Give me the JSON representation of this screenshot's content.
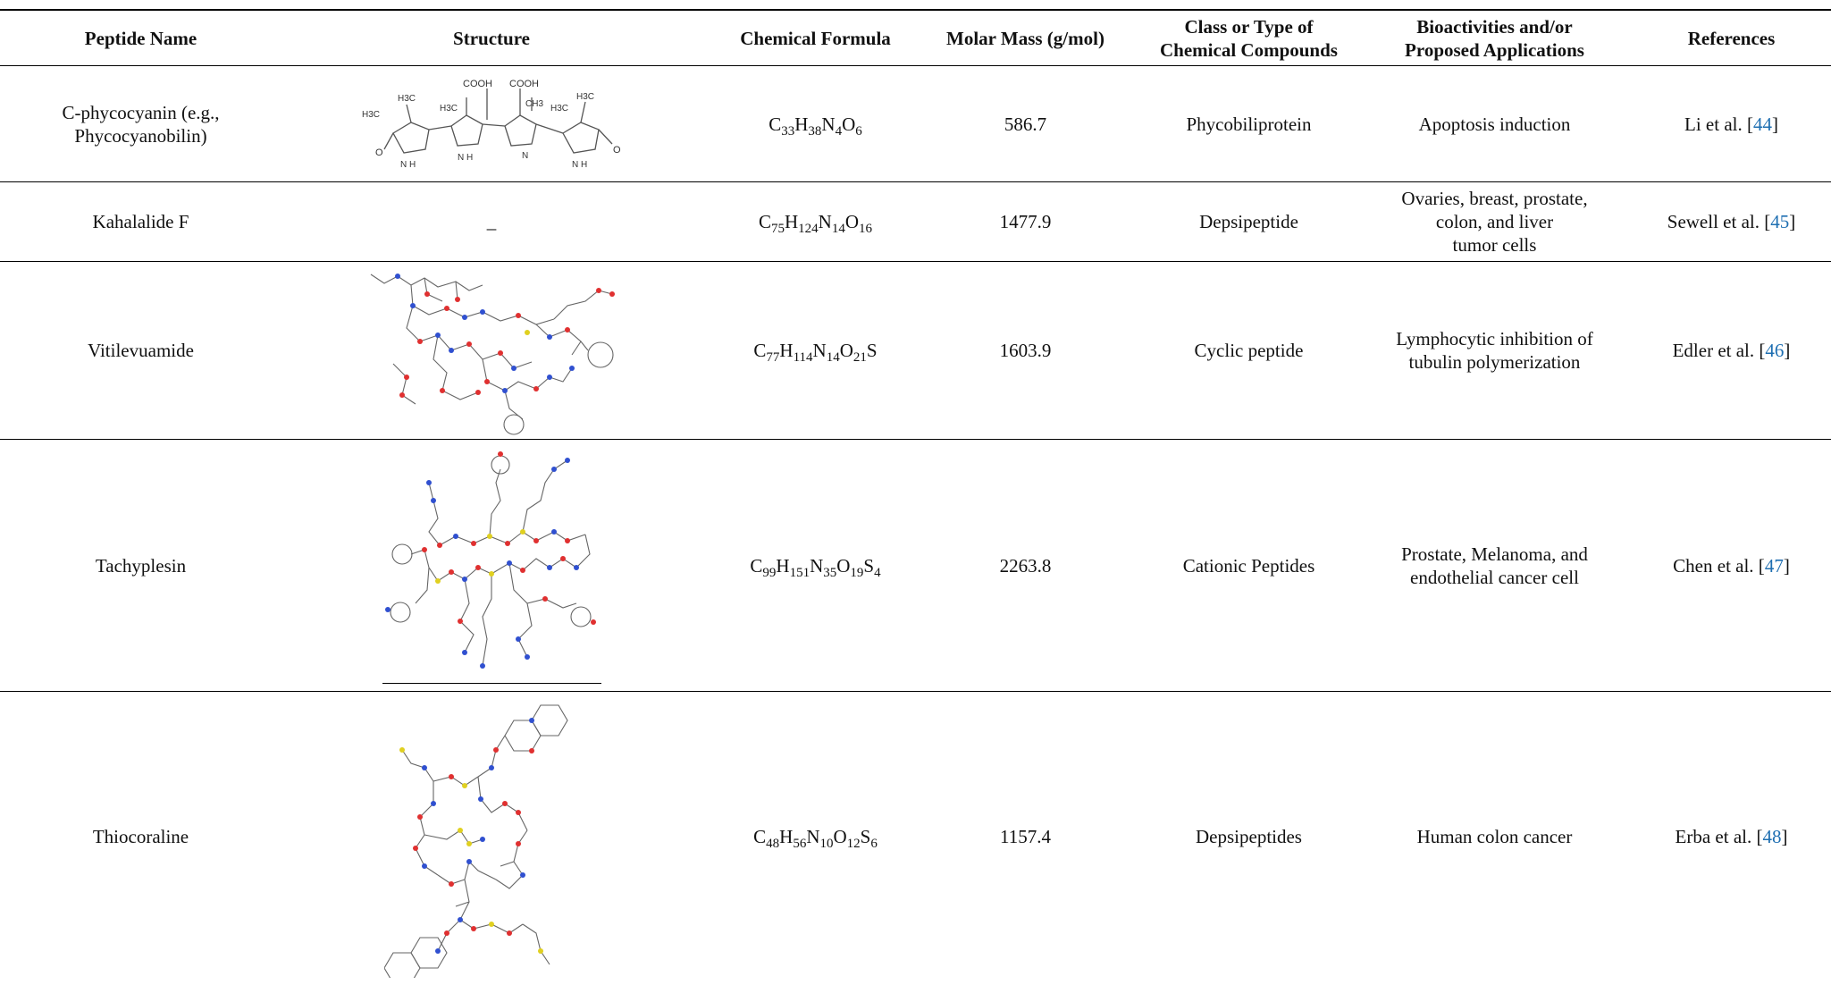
{
  "table": {
    "headers": {
      "name": "Peptide Name",
      "structure": "Structure",
      "formula": "Chemical Formula",
      "mass": "Molar Mass (g/mol)",
      "class_line1": "Class or Type of",
      "class_line2": "Chemical Compounds",
      "bio_line1": "Bioactivities and/or",
      "bio_line2": "Proposed Applications",
      "refs": "References"
    },
    "rows": [
      {
        "name_line1": "C-phycocyanin (e.g.,",
        "name_line2": "Phycocyanobilin)",
        "formula": [
          "C",
          "33",
          "H",
          "38",
          "N",
          "4",
          "O",
          "6"
        ],
        "mass": "586.7",
        "class": "Phycobiliprotein",
        "bio": "Apoptosis induction",
        "ref_text": "Li et al. [",
        "ref_num": "44",
        "ref_end": "]",
        "structure_labels": {
          "cooh1": "COOH",
          "cooh2": "COOH",
          "h3c1": "H3C",
          "h3c2": "H3C",
          "h3c3": "H3C",
          "ch3": "CH3",
          "h3c4": "H3C",
          "h3c5": "H3C",
          "o1": "O",
          "o2": "O",
          "nh1": "N H",
          "nh2": "N H",
          "n": "N",
          "nh3": "N H"
        }
      },
      {
        "name_line1": "Kahalalide F",
        "structure_text": "_",
        "formula": [
          "C",
          "75",
          "H",
          "124",
          "N",
          "14",
          "O",
          "16"
        ],
        "mass": "1477.9",
        "class": "Depsipeptide",
        "bio_line1": "Ovaries, breast, prostate,",
        "bio_line2": "colon, and liver",
        "bio_line3": "tumor cells",
        "ref_text": "Sewell et al. [",
        "ref_num": "45",
        "ref_end": "]"
      },
      {
        "name_line1": "Vitilevuamide",
        "formula": [
          "C",
          "77",
          "H",
          "114",
          "N",
          "14",
          "O",
          "21",
          "S",
          ""
        ],
        "mass": "1603.9",
        "class": "Cyclic peptide",
        "bio_line1": "Lymphocytic inhibition of",
        "bio_line2": "tubulin polymerization",
        "ref_text": "Edler et al. [",
        "ref_num": "46",
        "ref_end": "]"
      },
      {
        "name_line1": "Tachyplesin",
        "formula": [
          "C",
          "99",
          "H",
          "151",
          "N",
          "35",
          "O",
          "19",
          "S",
          "4"
        ],
        "mass": "2263.8",
        "class": "Cationic Peptides",
        "bio_line1": "Prostate, Melanoma, and",
        "bio_line2": "endothelial cancer cell",
        "ref_text": "Chen et al. [",
        "ref_num": "47",
        "ref_end": "]"
      },
      {
        "name_line1": "Thiocoraline",
        "formula": [
          "C",
          "48",
          "H",
          "56",
          "N",
          "10",
          "O",
          "12",
          "S",
          "6"
        ],
        "mass": "1157.4",
        "class": "Depsipeptides",
        "bio": "Human colon cancer",
        "ref_text": "Erba et al. [",
        "ref_num": "48",
        "ref_end": "]"
      }
    ]
  },
  "colors": {
    "rule": "#000000",
    "link": "#1f6fb2",
    "oxygen": "#e03030",
    "nitrogen": "#3050d0",
    "sulfur": "#e0d020",
    "bond": "#555555"
  }
}
